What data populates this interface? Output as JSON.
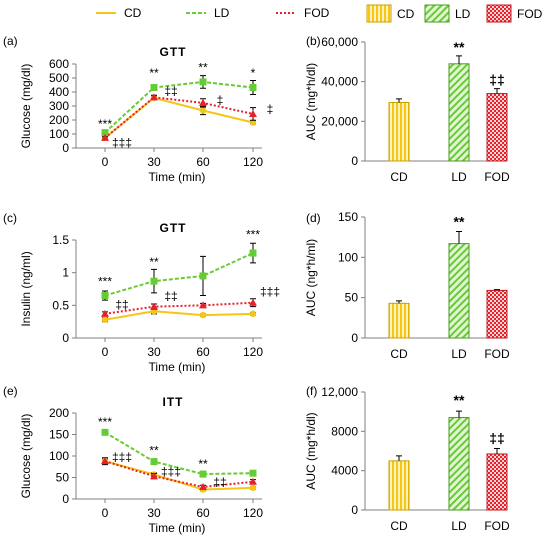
{
  "colors": {
    "CD": "#f5c518",
    "LD": "#66cc33",
    "FOD": "#e8202a",
    "axis": "#808080"
  },
  "legend_lines": {
    "items": [
      "CD",
      "LD",
      "FOD"
    ]
  },
  "legend_bars": {
    "items": [
      "CD",
      "LD",
      "FOD"
    ]
  },
  "chart_data": [
    {
      "id": "a",
      "panel_label": "(a)",
      "type": "line",
      "title": "GTT",
      "xlabel": "Time (min)",
      "ylabel": "Glucose (mg/dl)",
      "x": [
        0,
        30,
        60,
        120
      ],
      "ylim": [
        0,
        600
      ],
      "yticks": [
        0,
        100,
        200,
        300,
        400,
        500,
        600
      ],
      "series": [
        {
          "name": "CD",
          "values": [
            72,
            358,
            268,
            182
          ],
          "err": [
            8,
            12,
            30,
            10
          ]
        },
        {
          "name": "LD",
          "values": [
            110,
            432,
            472,
            432
          ],
          "err": [
            12,
            15,
            45,
            50
          ]
        },
        {
          "name": "FOD",
          "values": [
            72,
            362,
            322,
            243
          ],
          "err": [
            8,
            15,
            30,
            45
          ]
        }
      ],
      "annotations": [
        {
          "text": "***",
          "x": 0,
          "y": 143
        },
        {
          "text": "‡‡‡",
          "x": 0,
          "y": 12
        },
        {
          "text": "**",
          "x": 30,
          "y": 507
        },
        {
          "text": "‡‡",
          "x": 30,
          "y": 380
        },
        {
          "text": "**",
          "x": 60,
          "y": 547
        },
        {
          "text": "‡",
          "x": 60,
          "y": 315
        },
        {
          "text": "*",
          "x": 120,
          "y": 507
        },
        {
          "text": "‡",
          "x": 120,
          "y": 250
        }
      ]
    },
    {
      "id": "b",
      "panel_label": "(b)",
      "type": "bar",
      "title": "",
      "xlabel": "",
      "ylabel": "AUC (mg*h/dl)",
      "categories": [
        "CD",
        "LD",
        "FOD"
      ],
      "values": [
        29500,
        49000,
        34000
      ],
      "err": [
        1800,
        4000,
        2500
      ],
      "ylim": [
        0,
        60000
      ],
      "yticks": [
        0,
        20000,
        40000,
        60000
      ],
      "yticklabels": [
        "0",
        "20,000",
        "40,000",
        "60,000"
      ],
      "annotations": [
        {
          "text": "**",
          "cat": "LD",
          "y": 55000
        },
        {
          "text": "‡‡",
          "cat": "FOD",
          "y": 38500
        }
      ]
    },
    {
      "id": "c",
      "panel_label": "(c)",
      "type": "line",
      "title": "GTT",
      "xlabel": "Time (min)",
      "ylabel": "Insulin (ng/ml)",
      "x": [
        0,
        30,
        60,
        120
      ],
      "ylim": [
        0,
        1.5
      ],
      "yticks": [
        0,
        0.5,
        1,
        1.5
      ],
      "yticklabels": [
        "0",
        "0.5",
        "1",
        "1.5"
      ],
      "series": [
        {
          "name": "CD",
          "values": [
            0.28,
            0.41,
            0.35,
            0.37
          ],
          "err": [
            0.03,
            0.04,
            0.02,
            0.02
          ]
        },
        {
          "name": "LD",
          "values": [
            0.65,
            0.87,
            0.95,
            1.3
          ],
          "err": [
            0.07,
            0.18,
            0.3,
            0.15
          ]
        },
        {
          "name": "FOD",
          "values": [
            0.37,
            0.48,
            0.5,
            0.54
          ],
          "err": [
            0.03,
            0.04,
            0.03,
            0.06
          ]
        }
      ],
      "annotations": [
        {
          "text": "***",
          "x": 0,
          "y": 0.8
        },
        {
          "text": "‡‡",
          "x": 0,
          "y": 0.45
        },
        {
          "text": "**",
          "x": 30,
          "y": 1.1
        },
        {
          "text": "‡‡",
          "x": 30,
          "y": 0.58
        },
        {
          "text": "***",
          "x": 120,
          "y": 1.52
        },
        {
          "text": "‡‡‡",
          "x": 120,
          "y": 0.65
        }
      ]
    },
    {
      "id": "d",
      "panel_label": "(d)",
      "type": "bar",
      "title": "",
      "xlabel": "",
      "ylabel": "AUC (ng*h/ml)",
      "categories": [
        "CD",
        "LD",
        "FOD"
      ],
      "values": [
        43,
        117,
        59
      ],
      "err": [
        3,
        15,
        1
      ],
      "ylim": [
        0,
        150
      ],
      "yticks": [
        0,
        50,
        100,
        150
      ],
      "yticklabels": [
        "0",
        "50",
        "100",
        "150"
      ],
      "annotations": [
        {
          "text": "**",
          "cat": "LD",
          "y": 138
        }
      ]
    },
    {
      "id": "e",
      "panel_label": "(e)",
      "type": "line",
      "title": "ITT",
      "xlabel": "Time (min)",
      "ylabel": "Glucose (mg/dl)",
      "x": [
        0,
        30,
        60,
        120
      ],
      "ylim": [
        0,
        200
      ],
      "yticks": [
        0,
        50,
        100,
        150,
        200
      ],
      "series": [
        {
          "name": "CD",
          "values": [
            88,
            57,
            22,
            26
          ],
          "err": [
            5,
            4,
            3,
            3
          ]
        },
        {
          "name": "LD",
          "values": [
            155,
            87,
            58,
            60
          ],
          "err": [
            6,
            5,
            5,
            4
          ]
        },
        {
          "name": "FOD",
          "values": [
            88,
            53,
            28,
            40
          ],
          "err": [
            8,
            6,
            4,
            5
          ]
        }
      ],
      "annotations": [
        {
          "text": "***",
          "x": 0,
          "y": 170
        },
        {
          "text": "‡‡‡",
          "x": 0,
          "y": 88
        },
        {
          "text": "**",
          "x": 30,
          "y": 103
        },
        {
          "text": "‡‡‡",
          "x": 30,
          "y": 55
        },
        {
          "text": "**",
          "x": 60,
          "y": 72
        },
        {
          "text": "‡‡",
          "x": 60,
          "y": 30
        }
      ]
    },
    {
      "id": "f",
      "panel_label": "(f)",
      "type": "bar",
      "title": "",
      "xlabel": "",
      "ylabel": "AUC (mg*h/dl)",
      "categories": [
        "CD",
        "LD",
        "FOD"
      ],
      "values": [
        5000,
        9400,
        5700
      ],
      "err": [
        500,
        650,
        550
      ],
      "ylim": [
        0,
        12000
      ],
      "yticks": [
        0,
        4000,
        8000,
        12000
      ],
      "yticklabels": [
        "0",
        "4000",
        "8000",
        "12,000"
      ],
      "annotations": [
        {
          "text": "**",
          "cat": "LD",
          "y": 10700
        },
        {
          "text": "‡‡",
          "cat": "FOD",
          "y": 6800
        }
      ]
    }
  ]
}
